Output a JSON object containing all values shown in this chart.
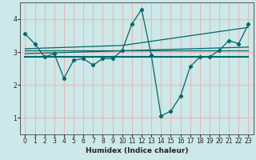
{
  "xlabel": "Humidex (Indice chaleur)",
  "background_color": "#cce8e8",
  "grid_color": "#e8b8b8",
  "line_color": "#006868",
  "xlim": [
    -0.5,
    23.5
  ],
  "ylim": [
    0.5,
    4.5
  ],
  "xticks": [
    0,
    1,
    2,
    3,
    4,
    5,
    6,
    7,
    8,
    9,
    10,
    11,
    12,
    13,
    14,
    15,
    16,
    17,
    18,
    19,
    20,
    21,
    22,
    23
  ],
  "yticks": [
    1,
    2,
    3,
    4
  ],
  "line1_x": [
    0,
    1,
    2,
    3,
    4,
    5,
    6,
    7,
    8,
    9,
    10,
    11,
    12,
    13,
    14,
    15,
    16,
    17,
    18,
    19,
    20,
    21,
    22,
    23
  ],
  "line1_y": [
    3.55,
    3.25,
    2.85,
    2.95,
    2.2,
    2.75,
    2.8,
    2.6,
    2.8,
    2.8,
    3.05,
    3.85,
    4.3,
    2.9,
    1.05,
    1.2,
    1.65,
    2.55,
    2.85,
    2.85,
    3.05,
    3.35,
    3.25,
    3.85
  ],
  "line2_x": [
    0,
    23
  ],
  "line2_y": [
    2.85,
    2.85
  ],
  "line3_x": [
    0,
    23
  ],
  "line3_y": [
    2.95,
    3.15
  ],
  "line4_x": [
    0,
    23
  ],
  "line4_y": [
    3.05,
    3.05
  ],
  "line5_x": [
    0,
    10,
    23
  ],
  "line5_y": [
    3.1,
    3.2,
    3.75
  ]
}
